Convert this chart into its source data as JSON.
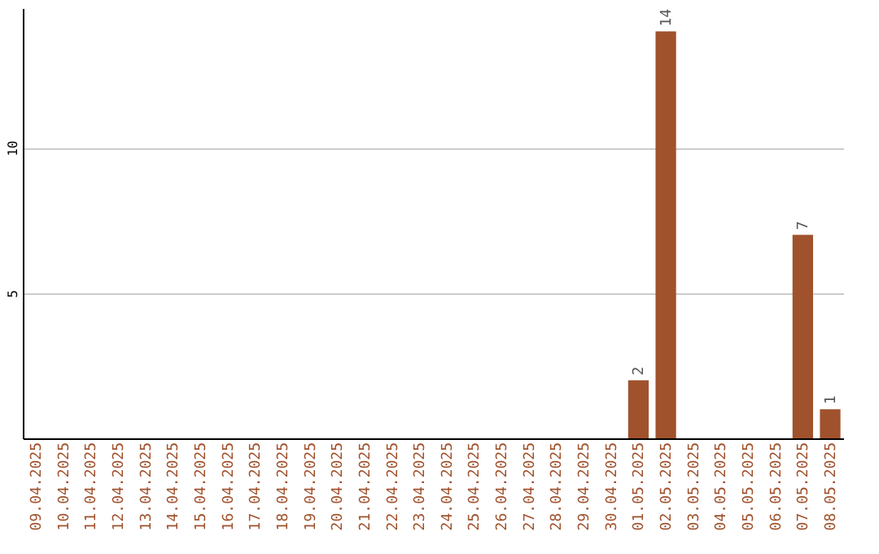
{
  "chart_data": {
    "type": "bar",
    "categories": [
      "09.04.2025",
      "10.04.2025",
      "11.04.2025",
      "12.04.2025",
      "13.04.2025",
      "14.04.2025",
      "15.04.2025",
      "16.04.2025",
      "17.04.2025",
      "18.04.2025",
      "19.04.2025",
      "20.04.2025",
      "21.04.2025",
      "22.04.2025",
      "23.04.2025",
      "24.04.2025",
      "25.04.2025",
      "26.04.2025",
      "27.04.2025",
      "28.04.2025",
      "29.04.2025",
      "30.04.2025",
      "01.05.2025",
      "02.05.2025",
      "03.05.2025",
      "04.05.2025",
      "05.05.2025",
      "06.05.2025",
      "07.05.2025",
      "08.05.2025"
    ],
    "values": [
      0,
      0,
      0,
      0,
      0,
      0,
      0,
      0,
      0,
      0,
      0,
      0,
      0,
      0,
      0,
      0,
      0,
      0,
      0,
      0,
      0,
      0,
      2,
      14,
      0,
      0,
      0,
      0,
      7,
      1
    ],
    "value_labels": [
      null,
      null,
      null,
      null,
      null,
      null,
      null,
      null,
      null,
      null,
      null,
      null,
      null,
      null,
      null,
      null,
      null,
      null,
      null,
      null,
      null,
      null,
      "2",
      "14",
      null,
      null,
      null,
      null,
      "7",
      "1"
    ],
    "color": "#a0522d",
    "ylim": [
      0,
      14.8
    ],
    "yticks": [
      5,
      10
    ],
    "grid": "y"
  }
}
